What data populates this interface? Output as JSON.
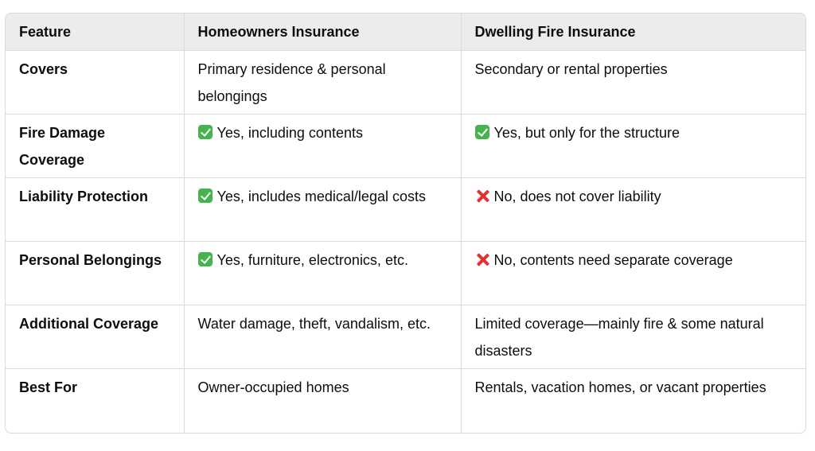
{
  "table": {
    "headers": [
      "Feature",
      "Homeowners Insurance",
      "Dwelling Fire Insurance"
    ],
    "rows": [
      {
        "feature": "Covers",
        "homeowners": {
          "icon": "",
          "text": "Primary residence & personal belongings"
        },
        "dwelling": {
          "icon": "",
          "text": "Secondary or rental properties"
        }
      },
      {
        "feature": "Fire Damage Coverage",
        "homeowners": {
          "icon": "check-mark-icon",
          "text": "Yes, including contents"
        },
        "dwelling": {
          "icon": "check-mark-icon",
          "text": "Yes, but only for the structure"
        }
      },
      {
        "feature": "Liability Protection",
        "homeowners": {
          "icon": "check-mark-icon",
          "text": "Yes, includes medical/legal costs"
        },
        "dwelling": {
          "icon": "cross-mark-icon",
          "text": "No, does not cover liability"
        }
      },
      {
        "feature": "Personal Belongings",
        "homeowners": {
          "icon": "check-mark-icon",
          "text": "Yes, furniture, electronics, etc."
        },
        "dwelling": {
          "icon": "cross-mark-icon",
          "text": "No, contents need separate coverage"
        }
      },
      {
        "feature": "Additional Coverage",
        "homeowners": {
          "icon": "",
          "text": "Water damage, theft, vandalism, etc."
        },
        "dwelling": {
          "icon": "",
          "text": "Limited coverage—mainly fire & some natural disasters"
        }
      },
      {
        "feature": "Best For",
        "homeowners": {
          "icon": "",
          "text": "Owner-occupied homes"
        },
        "dwelling": {
          "icon": "",
          "text": "Rentals, vacation homes, or vacant properties"
        }
      }
    ]
  },
  "colors": {
    "header_bg": "#ececec",
    "check_green": "#46b34b",
    "cross_red": "#e0332f",
    "border": "#dcdcdc"
  }
}
